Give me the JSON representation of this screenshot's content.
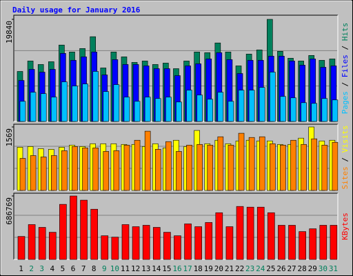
{
  "title": "Daily usage for January 2016",
  "legend_separator": "/",
  "chart_data": [
    {
      "type": "bar",
      "ylim": [
        0,
        19840
      ],
      "yticks": [
        19840
      ],
      "series": [
        {
          "name": "Hits",
          "color": "#00805c",
          "values": [
            9718,
            11743,
            11067,
            11607,
            14847,
            13497,
            14172,
            16466,
            10393,
            13497,
            12552,
            11472,
            11743,
            11067,
            11337,
            10258,
            11743,
            13497,
            13362,
            15252,
            13497,
            10798,
            13092,
            13902,
            19840,
            13632,
            12282,
            11743,
            12822,
            11877,
            12147
          ]
        },
        {
          "name": "Files",
          "color": "#0000ff",
          "values": [
            7963,
            10123,
            9583,
            10123,
            13227,
            11877,
            12552,
            13497,
            9043,
            12012,
            11067,
            11067,
            10798,
            10258,
            10258,
            8908,
            10798,
            11202,
            12147,
            13362,
            12012,
            9313,
            11877,
            11877,
            12687,
            12687,
            11743,
            10933,
            12147,
            10528,
            10798
          ]
        },
        {
          "name": "Pages",
          "color": "#00c0ff",
          "values": [
            3914,
            5669,
            5399,
            4724,
            7693,
            6883,
            7288,
            9718,
            5804,
            7153,
            4724,
            3914,
            4724,
            4454,
            4724,
            3779,
            6073,
            5129,
            4319,
            5669,
            3914,
            6073,
            6073,
            6613,
            9583,
            4859,
            4589,
            3644,
            3509,
            4454,
            4184
          ]
        }
      ]
    },
    {
      "type": "bar",
      "ylim": [
        0,
        1569
      ],
      "yticks": [
        1569
      ],
      "series": [
        {
          "name": "Visits",
          "color": "#ffff00",
          "values": [
            1069,
            1086,
            1034,
            1017,
            1069,
            1121,
            1086,
            1155,
            1155,
            1155,
            1138,
            1138,
            1086,
            1155,
            1052,
            1241,
            1086,
            1483,
            1155,
            1241,
            1155,
            1224,
            1241,
            1224,
            1224,
            1138,
            1138,
            1293,
            1569,
            1224,
            1241
          ]
        },
        {
          "name": "Sites",
          "color": "#ff8000",
          "values": [
            793,
            862,
            828,
            862,
            983,
            1086,
            1052,
            1052,
            965,
            983,
            1121,
            1241,
            1465,
            1017,
            1207,
            965,
            1121,
            1138,
            1121,
            1327,
            1121,
            1414,
            1310,
            1327,
            1155,
            1121,
            1241,
            1138,
            1276,
            1121,
            1190
          ]
        }
      ]
    },
    {
      "type": "bar",
      "ylim": [
        0,
        686769
      ],
      "yticks": [
        686769
      ],
      "categories": [
        "1",
        "2",
        "3",
        "4",
        "5",
        "6",
        "7",
        "8",
        "9",
        "10",
        "11",
        "12",
        "13",
        "14",
        "15",
        "16",
        "17",
        "18",
        "19",
        "20",
        "21",
        "22",
        "23",
        "24",
        "25",
        "26",
        "27",
        "28",
        "29",
        "30",
        "31"
      ],
      "category_colors": [
        "#000000",
        "#00805c",
        "#00805c",
        "#000000",
        "#000000",
        "#000000",
        "#000000",
        "#000000",
        "#00805c",
        "#00805c",
        "#000000",
        "#000000",
        "#000000",
        "#000000",
        "#000000",
        "#00805c",
        "#00805c",
        "#000000",
        "#000000",
        "#000000",
        "#000000",
        "#000000",
        "#00805c",
        "#00805c",
        "#000000",
        "#000000",
        "#000000",
        "#000000",
        "#000000",
        "#00805c",
        "#00805c"
      ],
      "series": [
        {
          "name": "KBytes",
          "color": "#ff0000",
          "values": [
            249051,
            377350,
            347162,
            294333,
            596213,
            686769,
            641487,
            543384,
            256598,
            241504,
            377350,
            354709,
            369803,
            347162,
            294333,
            256598,
            384897,
            354709,
            399991,
            505649,
            354709,
            573572,
            566025,
            566025,
            505649,
            369803,
            369803,
            301880,
            332068,
            369803,
            369803
          ]
        }
      ]
    }
  ]
}
